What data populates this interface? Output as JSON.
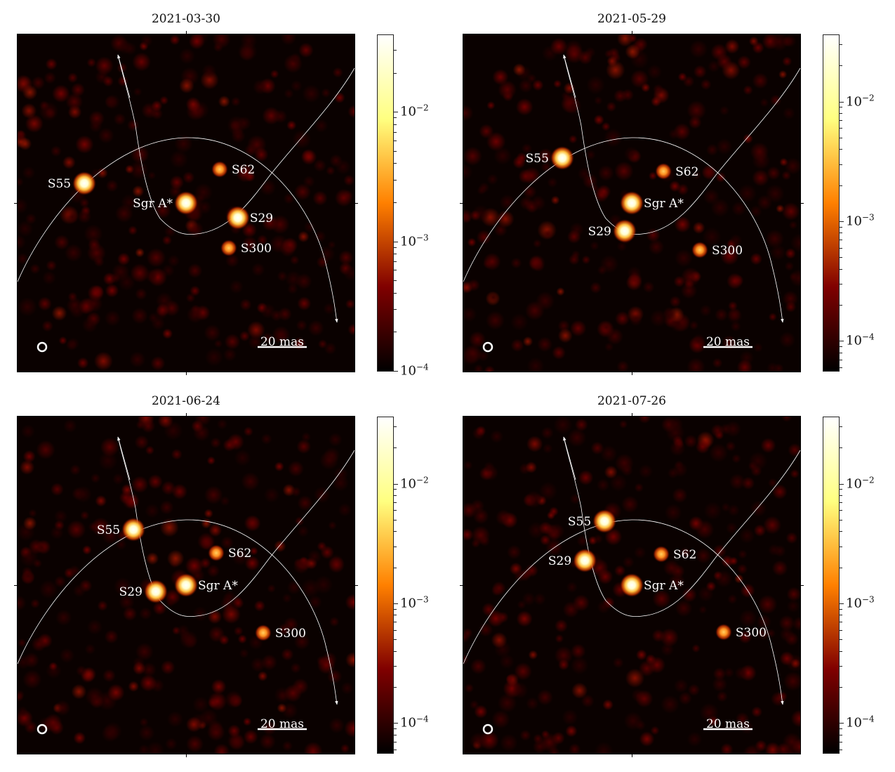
{
  "chart_data": [
    {
      "type": "image",
      "title": "2021-03-30",
      "colorbar": {
        "scale": "log",
        "range": [
          0.0001,
          0.039
        ],
        "ticks": [
          {
            "value": 0.01,
            "base": "10",
            "exp": "−2"
          },
          {
            "value": 0.001,
            "base": "10",
            "exp": "−3"
          },
          {
            "value": 0.0001,
            "base": "10",
            "exp": "−4"
          }
        ]
      },
      "scale_bar": "20 mas",
      "sources": [
        {
          "name": "S55",
          "x_mas": -41.4,
          "y_mas": 8.0,
          "brightness": "bright",
          "label_side": "left"
        },
        {
          "name": "Sgr A*",
          "x_mas": 0,
          "y_mas": 0,
          "brightness": "bright",
          "label_side": "left"
        },
        {
          "name": "S62",
          "x_mas": 13.7,
          "y_mas": 13.7,
          "brightness": "faint",
          "label_side": "right"
        },
        {
          "name": "S29",
          "x_mas": 21.1,
          "y_mas": -6.0,
          "brightness": "bright",
          "label_side": "right"
        },
        {
          "name": "S300",
          "x_mas": 17.4,
          "y_mas": -18.3,
          "brightness": "faint",
          "label_side": "right"
        }
      ]
    },
    {
      "type": "image",
      "title": "2021-05-29",
      "colorbar": {
        "scale": "log",
        "range": [
          5.6e-05,
          0.036
        ],
        "ticks": [
          {
            "value": 0.01,
            "base": "10",
            "exp": "−2"
          },
          {
            "value": 0.001,
            "base": "10",
            "exp": "−3"
          },
          {
            "value": 0.0001,
            "base": "10",
            "exp": "−4"
          }
        ]
      },
      "scale_bar": "20 mas",
      "sources": [
        {
          "name": "S55",
          "x_mas": -28.3,
          "y_mas": 18.3,
          "brightness": "bright",
          "label_side": "left"
        },
        {
          "name": "Sgr A*",
          "x_mas": 0,
          "y_mas": 0,
          "brightness": "bright",
          "label_side": "right"
        },
        {
          "name": "S62",
          "x_mas": 12.9,
          "y_mas": 12.9,
          "brightness": "faint",
          "label_side": "right"
        },
        {
          "name": "S29",
          "x_mas": -2.9,
          "y_mas": -11.4,
          "brightness": "bright",
          "label_side": "left"
        },
        {
          "name": "S300",
          "x_mas": 27.7,
          "y_mas": -19.1,
          "brightness": "faint",
          "label_side": "right"
        }
      ]
    },
    {
      "type": "image",
      "title": "2021-06-24",
      "colorbar": {
        "scale": "log",
        "range": [
          5.6e-05,
          0.036
        ],
        "ticks": [
          {
            "value": 0.01,
            "base": "10",
            "exp": "−2"
          },
          {
            "value": 0.001,
            "base": "10",
            "exp": "−3"
          },
          {
            "value": 0.0001,
            "base": "10",
            "exp": "−4"
          }
        ]
      },
      "scale_bar": "20 mas",
      "sources": [
        {
          "name": "S55",
          "x_mas": -21.4,
          "y_mas": 22.6,
          "brightness": "bright",
          "label_side": "left"
        },
        {
          "name": "Sgr A*",
          "x_mas": 0,
          "y_mas": 0,
          "brightness": "bright",
          "label_side": "right"
        },
        {
          "name": "S62",
          "x_mas": 12.3,
          "y_mas": 13.1,
          "brightness": "faint",
          "label_side": "right"
        },
        {
          "name": "S29",
          "x_mas": -12.3,
          "y_mas": -2.6,
          "brightness": "bright",
          "label_side": "left"
        },
        {
          "name": "S300",
          "x_mas": 31.4,
          "y_mas": -19.4,
          "brightness": "faint",
          "label_side": "right"
        }
      ]
    },
    {
      "type": "image",
      "title": "2021-07-26",
      "colorbar": {
        "scale": "log",
        "range": [
          5.6e-05,
          0.036
        ],
        "ticks": [
          {
            "value": 0.01,
            "base": "10",
            "exp": "−2"
          },
          {
            "value": 0.001,
            "base": "10",
            "exp": "−3"
          },
          {
            "value": 0.0001,
            "base": "10",
            "exp": "−4"
          }
        ]
      },
      "scale_bar": "20 mas",
      "sources": [
        {
          "name": "S55",
          "x_mas": -11.1,
          "y_mas": 26.0,
          "brightness": "bright",
          "label_side": "left"
        },
        {
          "name": "Sgr A*",
          "x_mas": 0,
          "y_mas": 0,
          "brightness": "bright",
          "label_side": "right"
        },
        {
          "name": "S62",
          "x_mas": 12.0,
          "y_mas": 12.6,
          "brightness": "faint",
          "label_side": "right"
        },
        {
          "name": "S29",
          "x_mas": -19.1,
          "y_mas": 10.0,
          "brightness": "bright",
          "label_side": "left"
        },
        {
          "name": "S300",
          "x_mas": 37.4,
          "y_mas": -19.1,
          "brightness": "faint",
          "label_side": "right"
        }
      ]
    }
  ]
}
